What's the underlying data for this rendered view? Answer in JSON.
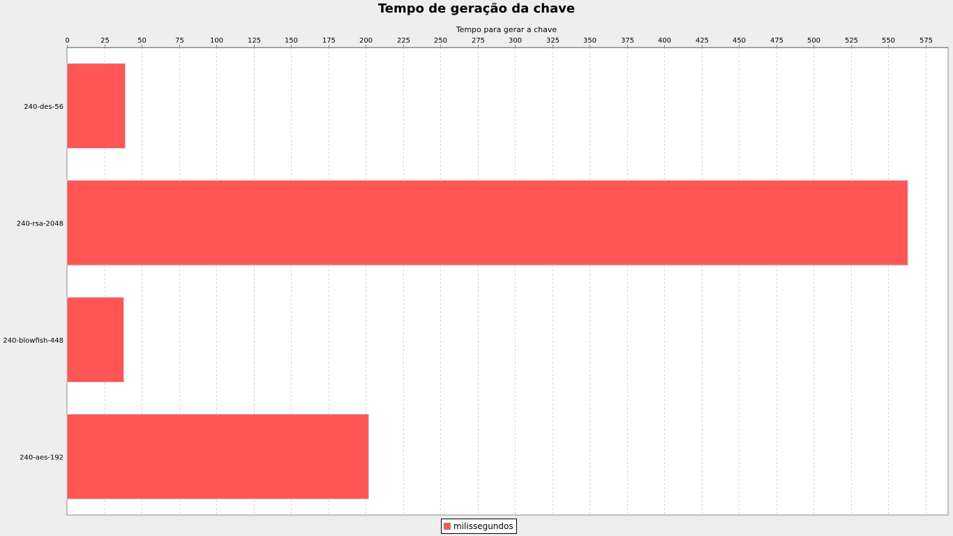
{
  "chart_data": {
    "type": "bar",
    "orientation": "horizontal",
    "title": "Tempo de geração da chave",
    "xlabel": "Tempo para gerar a chave",
    "ylabel": "",
    "categories": [
      "240-des-56",
      "240-rsa-2048",
      "240-blowfish-448",
      "240-aes-192"
    ],
    "series": [
      {
        "name": "milissegundos",
        "values": [
          39,
          563,
          38,
          202
        ]
      }
    ],
    "xlim": [
      0,
      590
    ],
    "xticks": [
      0,
      25,
      50,
      75,
      100,
      125,
      150,
      175,
      200,
      225,
      250,
      275,
      300,
      325,
      350,
      375,
      400,
      425,
      450,
      475,
      500,
      525,
      550,
      575
    ],
    "value_axis_position": "top",
    "grid": true,
    "legend": "bottom",
    "colors": {
      "bar": "#ff5555",
      "plot_background": "#ffffff",
      "page_background": "#eeeeee",
      "grid": "#d8d8d8"
    }
  }
}
